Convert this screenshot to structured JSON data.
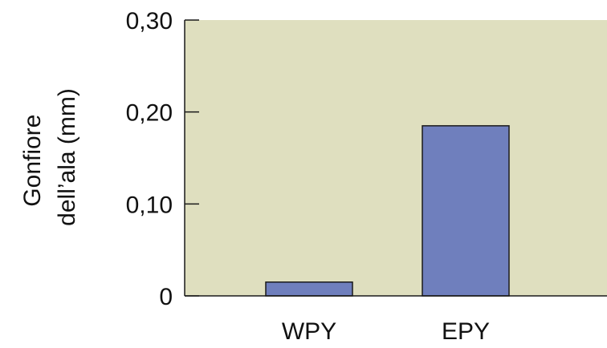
{
  "colors": {
    "plot_background": "#dfdfbf",
    "bar_fill": "#6f7fbd",
    "bar_stroke": "#1a1a1a",
    "axis": "#1a1a1a"
  },
  "chart_data": {
    "type": "bar",
    "categories": [
      "WPY",
      "EPY"
    ],
    "values": [
      0.015,
      0.185
    ],
    "ylim": [
      0,
      0.3
    ],
    "yticks": [
      0,
      0.1,
      0.2,
      0.3
    ],
    "ytick_labels": [
      "0",
      "0,10",
      "0,20",
      "0,30"
    ],
    "xlabel": "",
    "ylabel_lines": [
      "Gonfiore",
      "dell’ala (mm)"
    ],
    "grid": false,
    "legend": "none"
  }
}
